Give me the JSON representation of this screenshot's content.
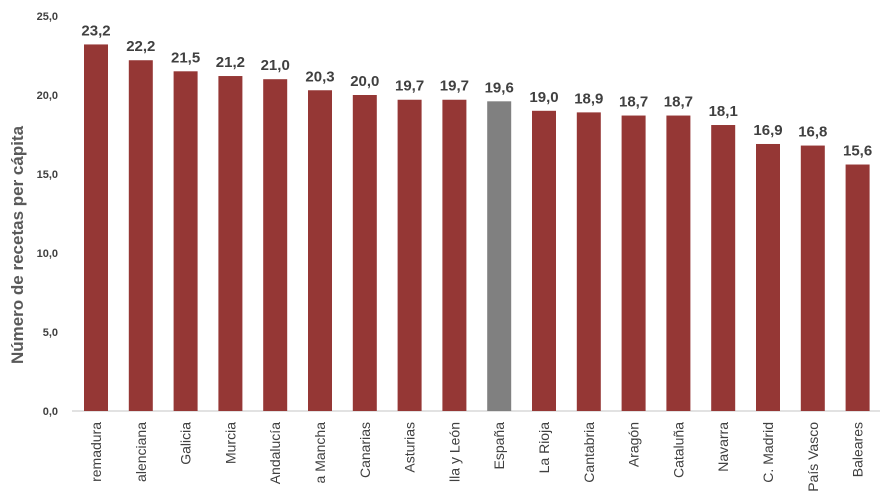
{
  "chart_data": {
    "type": "bar",
    "title": "",
    "xlabel": "",
    "ylabel": "Número de recetas per cápita",
    "ylim": [
      0,
      25
    ],
    "yticks": [
      "0,0",
      "5,0",
      "10,0",
      "15,0",
      "20,0",
      "25,0"
    ],
    "ytick_values": [
      0,
      5,
      10,
      15,
      20,
      25
    ],
    "grid": false,
    "categories": [
      "remadura",
      "alenciana",
      "Galicia",
      "Murcia",
      "Andalucía",
      "a Mancha",
      "Canarias",
      "Asturias",
      "lla y León",
      "España",
      "La Rioja",
      "Cantabria",
      "Aragón",
      "Cataluña",
      "Navarra",
      "C. Madrid",
      "País Vasco",
      "Baleares"
    ],
    "values": [
      23.2,
      22.2,
      21.5,
      21.2,
      21.0,
      20.3,
      20.0,
      19.7,
      19.7,
      19.6,
      19.0,
      18.9,
      18.7,
      18.7,
      18.1,
      16.9,
      16.8,
      15.6
    ],
    "value_labels": [
      "23,2",
      "22,2",
      "21,5",
      "21,2",
      "21,0",
      "20,3",
      "20,0",
      "19,7",
      "19,7",
      "19,6",
      "19,0",
      "18,9",
      "18,7",
      "18,7",
      "18,1",
      "16,9",
      "16,8",
      "15,6"
    ],
    "highlight_category": "España",
    "colors": {
      "bar": "#953735",
      "highlight": "#808080",
      "axis": "#d9d9d9"
    }
  }
}
